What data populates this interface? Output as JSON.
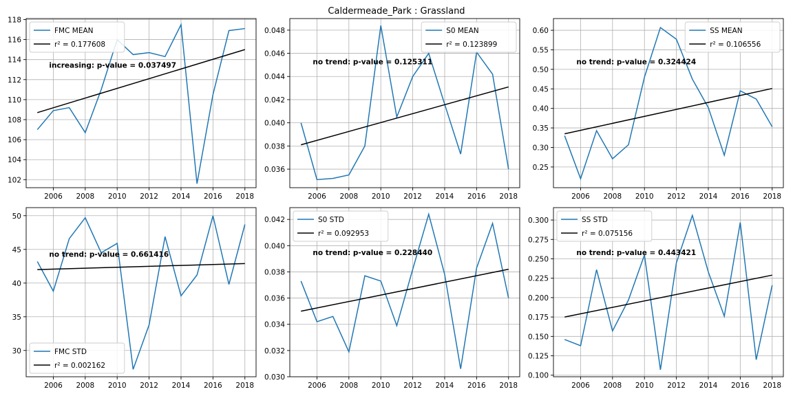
{
  "figure": {
    "title": "Caldermeade_Park : Grassland"
  },
  "colors": {
    "series": "#1f77b4",
    "trend": "#000000",
    "grid": "#b0b0b0"
  },
  "chart_data": [
    {
      "type": "line",
      "x": [
        2005,
        2006,
        2007,
        2008,
        2009,
        2010,
        2011,
        2012,
        2013,
        2014,
        2015,
        2016,
        2017,
        2018
      ],
      "series": [
        {
          "name": "FMC MEAN",
          "values": [
            107.0,
            108.9,
            109.2,
            106.7,
            111.0,
            116.0,
            114.5,
            114.7,
            114.3,
            117.5,
            101.6,
            110.5,
            116.9,
            117.1
          ]
        },
        {
          "name": "r² = 0.177608",
          "trend": [
            108.7,
            115.0
          ]
        }
      ],
      "xlim": [
        2004.3,
        2018.7
      ],
      "ylim": [
        101.2,
        118.1
      ],
      "xticks": [
        2006,
        2008,
        2010,
        2012,
        2014,
        2016,
        2018
      ],
      "yticks": [
        102,
        104,
        106,
        108,
        110,
        112,
        114,
        116,
        118
      ],
      "annotation": "increasing: p-value = 0.037497",
      "legend_loc": "upper left",
      "grid": true
    },
    {
      "type": "line",
      "x": [
        2005,
        2006,
        2007,
        2008,
        2009,
        2010,
        2011,
        2012,
        2013,
        2014,
        2015,
        2016,
        2017,
        2018
      ],
      "series": [
        {
          "name": "S0 MEAN",
          "values": [
            0.04,
            0.0351,
            0.0352,
            0.0355,
            0.038,
            0.0484,
            0.0405,
            0.044,
            0.046,
            0.0416,
            0.0373,
            0.0461,
            0.0442,
            0.036
          ]
        },
        {
          "name": "r² = 0.123899",
          "trend": [
            0.0381,
            0.0431
          ]
        }
      ],
      "xlim": [
        2004.3,
        2018.7
      ],
      "ylim": [
        0.0344,
        0.049
      ],
      "xticks": [
        2006,
        2008,
        2010,
        2012,
        2014,
        2016,
        2018
      ],
      "yticks": [
        0.036,
        0.038,
        0.04,
        0.042,
        0.044,
        0.046,
        0.048
      ],
      "annotation": "no trend: p-value = 0.125311",
      "legend_loc": "upper right",
      "grid": true
    },
    {
      "type": "line",
      "x": [
        2005,
        2006,
        2007,
        2008,
        2009,
        2010,
        2011,
        2012,
        2013,
        2014,
        2015,
        2016,
        2017,
        2018
      ],
      "series": [
        {
          "name": "SS MEAN",
          "values": [
            0.33,
            0.22,
            0.343,
            0.271,
            0.307,
            0.48,
            0.607,
            0.577,
            0.475,
            0.402,
            0.28,
            0.445,
            0.424,
            0.353
          ]
        },
        {
          "name": "r² = 0.106556",
          "trend": [
            0.335,
            0.451
          ]
        }
      ],
      "xlim": [
        2004.3,
        2018.7
      ],
      "ylim": [
        0.197,
        0.63
      ],
      "xticks": [
        2006,
        2008,
        2010,
        2012,
        2014,
        2016,
        2018
      ],
      "yticks": [
        0.25,
        0.3,
        0.35,
        0.4,
        0.45,
        0.5,
        0.55,
        0.6
      ],
      "annotation": "no trend: p-value = 0.324424",
      "legend_loc": "upper right",
      "grid": true
    },
    {
      "type": "line",
      "x": [
        2005,
        2006,
        2007,
        2008,
        2009,
        2010,
        2011,
        2012,
        2013,
        2014,
        2015,
        2016,
        2017,
        2018
      ],
      "series": [
        {
          "name": "FMC STD",
          "values": [
            43.2,
            38.8,
            46.6,
            49.7,
            44.5,
            45.9,
            27.2,
            33.8,
            46.9,
            38.1,
            41.2,
            50.0,
            39.8,
            48.7
          ]
        },
        {
          "name": "r² = 0.002162",
          "trend": [
            42.0,
            42.9
          ]
        }
      ],
      "xlim": [
        2004.3,
        2018.7
      ],
      "ylim": [
        26.1,
        51.2
      ],
      "xticks": [
        2006,
        2008,
        2010,
        2012,
        2014,
        2016,
        2018
      ],
      "yticks": [
        30,
        35,
        40,
        45,
        50
      ],
      "annotation": "no trend: p-value = 0.661416",
      "legend_loc": "lower left",
      "grid": true
    },
    {
      "type": "line",
      "x": [
        2005,
        2006,
        2007,
        2008,
        2009,
        2010,
        2011,
        2012,
        2013,
        2014,
        2015,
        2016,
        2017,
        2018
      ],
      "series": [
        {
          "name": "S0 STD",
          "values": [
            0.0373,
            0.0342,
            0.0346,
            0.0319,
            0.0377,
            0.0373,
            0.0339,
            0.0382,
            0.0424,
            0.0378,
            0.0306,
            0.0383,
            0.0417,
            0.036
          ]
        },
        {
          "name": "r² = 0.092953",
          "trend": [
            0.035,
            0.0382
          ]
        }
      ],
      "xlim": [
        2004.3,
        2018.7
      ],
      "ylim": [
        0.03,
        0.0429
      ],
      "xticks": [
        2006,
        2008,
        2010,
        2012,
        2014,
        2016,
        2018
      ],
      "yticks": [
        0.03,
        0.032,
        0.034,
        0.036,
        0.038,
        0.04,
        0.042
      ],
      "annotation": "no trend: p-value = 0.228440",
      "legend_loc": "upper left",
      "grid": true
    },
    {
      "type": "line",
      "x": [
        2005,
        2006,
        2007,
        2008,
        2009,
        2010,
        2011,
        2012,
        2013,
        2014,
        2015,
        2016,
        2017,
        2018
      ],
      "series": [
        {
          "name": "SS STD",
          "values": [
            0.146,
            0.138,
            0.236,
            0.157,
            0.197,
            0.255,
            0.107,
            0.245,
            0.306,
            0.233,
            0.176,
            0.297,
            0.12,
            0.216
          ]
        },
        {
          "name": "r² = 0.075156",
          "trend": [
            0.175,
            0.229
          ]
        }
      ],
      "xlim": [
        2004.3,
        2018.7
      ],
      "ylim": [
        0.098,
        0.316
      ],
      "xticks": [
        2006,
        2008,
        2010,
        2012,
        2014,
        2016,
        2018
      ],
      "yticks": [
        0.1,
        0.125,
        0.15,
        0.175,
        0.2,
        0.225,
        0.25,
        0.275,
        0.3
      ],
      "annotation": "no trend: p-value = 0.443421",
      "legend_loc": "upper left",
      "grid": true
    }
  ]
}
